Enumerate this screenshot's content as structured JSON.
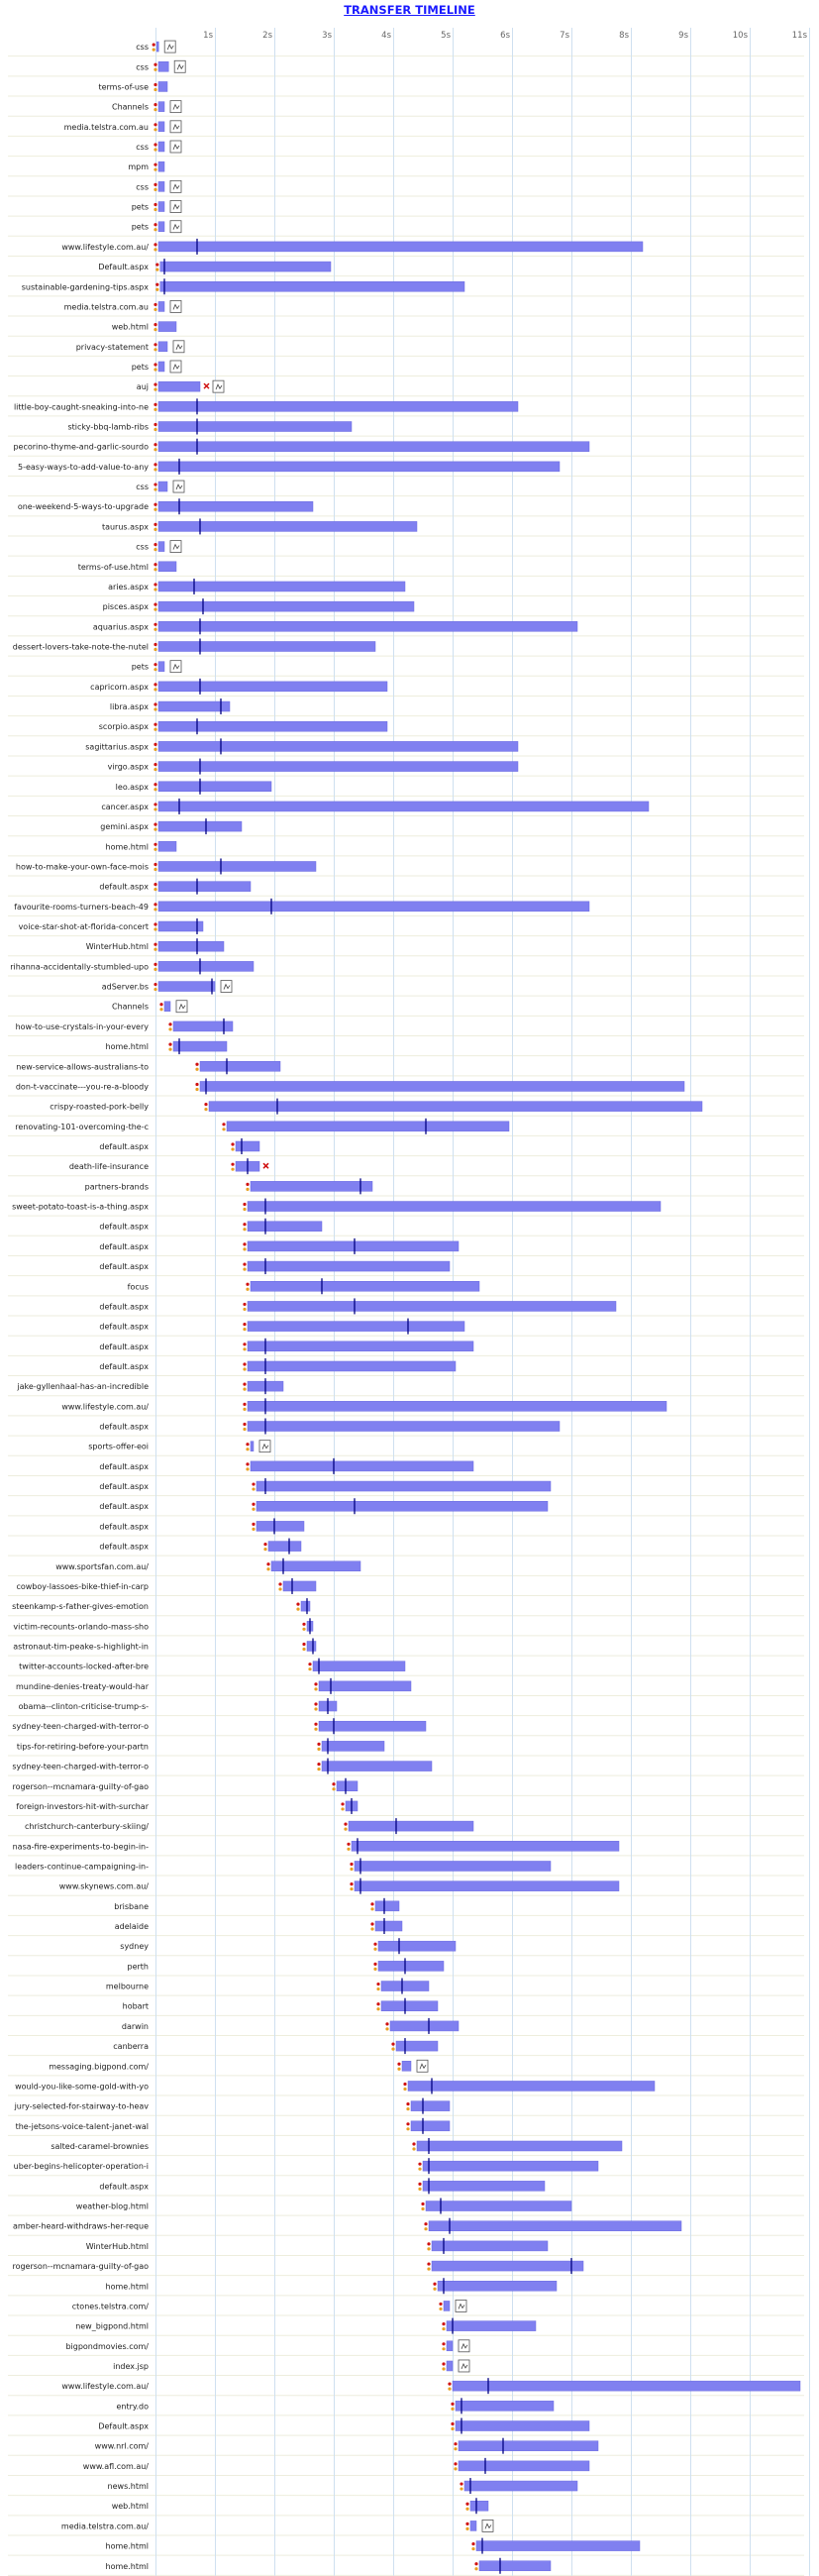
{
  "title": "TRANSFER TIMELINE",
  "chart_data": {
    "type": "gantt",
    "title": "TRANSFER TIMELINE",
    "x_unit": "seconds",
    "xlim": [
      0,
      11
    ],
    "x_ticks": [
      "1s",
      "2s",
      "3s",
      "4s",
      "5s",
      "6s",
      "7s",
      "8s",
      "9s",
      "10s",
      "11s"
    ],
    "grid": true,
    "colors": {
      "bar": "#8080f0",
      "grid": "#cfe0f0",
      "marker": "#000080",
      "error": "#d01010",
      "row_line": "#eeeedd",
      "link": "#1a1aff"
    },
    "rows": [
      {
        "label": "css",
        "start": 0.02,
        "end": 0.05,
        "mark": null,
        "type": "css"
      },
      {
        "label": "css",
        "start": 0.05,
        "end": 0.22,
        "mark": null,
        "type": "css"
      },
      {
        "label": "terms-of-use",
        "start": 0.05,
        "end": 0.2,
        "mark": null,
        "type": "none"
      },
      {
        "label": "Channels",
        "start": 0.05,
        "end": 0.15,
        "mark": null,
        "type": "css"
      },
      {
        "label": "media.telstra.com.au",
        "start": 0.05,
        "end": 0.15,
        "mark": null,
        "type": "css"
      },
      {
        "label": "css",
        "start": 0.05,
        "end": 0.15,
        "mark": null,
        "type": "css"
      },
      {
        "label": "mpm",
        "start": 0.05,
        "end": 0.15,
        "mark": null,
        "type": "none"
      },
      {
        "label": "css",
        "start": 0.05,
        "end": 0.15,
        "mark": null,
        "type": "css"
      },
      {
        "label": "pets",
        "start": 0.05,
        "end": 0.15,
        "mark": null,
        "type": "css"
      },
      {
        "label": "pets",
        "start": 0.05,
        "end": 0.15,
        "mark": null,
        "type": "css"
      },
      {
        "label": "www.lifestyle.com.au/",
        "start": 0.05,
        "end": 8.2,
        "mark": 0.7,
        "type": "none"
      },
      {
        "label": "Default.aspx",
        "start": 0.08,
        "end": 2.95,
        "mark": 0.15,
        "type": "none"
      },
      {
        "label": "sustainable-gardening-tips.aspx",
        "start": 0.08,
        "end": 5.2,
        "mark": 0.15,
        "type": "none"
      },
      {
        "label": "media.telstra.com.au",
        "start": 0.05,
        "end": 0.15,
        "mark": null,
        "type": "css"
      },
      {
        "label": "web.html",
        "start": 0.05,
        "end": 0.35,
        "mark": null,
        "type": "none"
      },
      {
        "label": "privacy-statement",
        "start": 0.05,
        "end": 0.2,
        "mark": null,
        "type": "css"
      },
      {
        "label": "pets",
        "start": 0.05,
        "end": 0.15,
        "mark": null,
        "type": "css"
      },
      {
        "label": "auj",
        "start": 0.05,
        "end": 0.75,
        "mark": null,
        "type": "err"
      },
      {
        "label": "little-boy-caught-sneaking-into-ne",
        "start": 0.05,
        "end": 6.1,
        "mark": 0.7,
        "type": "none"
      },
      {
        "label": "sticky-bbq-lamb-ribs",
        "start": 0.05,
        "end": 3.3,
        "mark": 0.7,
        "type": "none"
      },
      {
        "label": "pecorino-thyme-and-garlic-sourdo",
        "start": 0.05,
        "end": 7.3,
        "mark": 0.7,
        "type": "none"
      },
      {
        "label": "5-easy-ways-to-add-value-to-any",
        "start": 0.05,
        "end": 6.8,
        "mark": 0.4,
        "type": "none"
      },
      {
        "label": "css",
        "start": 0.05,
        "end": 0.2,
        "mark": null,
        "type": "css"
      },
      {
        "label": "one-weekend-5-ways-to-upgrade",
        "start": 0.05,
        "end": 2.65,
        "mark": 0.4,
        "type": "none"
      },
      {
        "label": "taurus.aspx",
        "start": 0.05,
        "end": 4.4,
        "mark": 0.75,
        "type": "none"
      },
      {
        "label": "css",
        "start": 0.05,
        "end": 0.15,
        "mark": null,
        "type": "css"
      },
      {
        "label": "terms-of-use.html",
        "start": 0.05,
        "end": 0.35,
        "mark": null,
        "type": "none"
      },
      {
        "label": "aries.aspx",
        "start": 0.05,
        "end": 4.2,
        "mark": 0.65,
        "type": "none"
      },
      {
        "label": "pisces.aspx",
        "start": 0.05,
        "end": 4.35,
        "mark": 0.8,
        "type": "none"
      },
      {
        "label": "aquarius.aspx",
        "start": 0.05,
        "end": 7.1,
        "mark": 0.75,
        "type": "none"
      },
      {
        "label": "dessert-lovers-take-note-the-nutel",
        "start": 0.05,
        "end": 3.7,
        "mark": 0.75,
        "type": "none"
      },
      {
        "label": "pets",
        "start": 0.05,
        "end": 0.15,
        "mark": null,
        "type": "css"
      },
      {
        "label": "capricorn.aspx",
        "start": 0.05,
        "end": 3.9,
        "mark": 0.75,
        "type": "none"
      },
      {
        "label": "libra.aspx",
        "start": 0.05,
        "end": 1.25,
        "mark": 1.1,
        "type": "none"
      },
      {
        "label": "scorpio.aspx",
        "start": 0.05,
        "end": 3.9,
        "mark": 0.7,
        "type": "none"
      },
      {
        "label": "sagittarius.aspx",
        "start": 0.05,
        "end": 6.1,
        "mark": 1.1,
        "type": "none"
      },
      {
        "label": "virgo.aspx",
        "start": 0.05,
        "end": 6.1,
        "mark": 0.75,
        "type": "none"
      },
      {
        "label": "leo.aspx",
        "start": 0.05,
        "end": 1.95,
        "mark": 0.75,
        "type": "none"
      },
      {
        "label": "cancer.aspx",
        "start": 0.05,
        "end": 8.3,
        "mark": 0.4,
        "type": "none"
      },
      {
        "label": "gemini.aspx",
        "start": 0.05,
        "end": 1.45,
        "mark": 0.85,
        "type": "none"
      },
      {
        "label": "home.html",
        "start": 0.05,
        "end": 0.35,
        "mark": null,
        "type": "none"
      },
      {
        "label": "how-to-make-your-own-face-mois",
        "start": 0.05,
        "end": 2.7,
        "mark": 1.1,
        "type": "none"
      },
      {
        "label": "default.aspx",
        "start": 0.05,
        "end": 1.6,
        "mark": 0.7,
        "type": "none"
      },
      {
        "label": "favourite-rooms-turners-beach-49",
        "start": 0.05,
        "end": 7.3,
        "mark": 1.95,
        "type": "none"
      },
      {
        "label": "voice-star-shot-at-florida-concert",
        "start": 0.05,
        "end": 0.8,
        "mark": 0.7,
        "type": "none"
      },
      {
        "label": "WinterHub.html",
        "start": 0.05,
        "end": 1.15,
        "mark": 0.7,
        "type": "none"
      },
      {
        "label": "rihanna-accidentally-stumbled-upo",
        "start": 0.05,
        "end": 1.65,
        "mark": 0.75,
        "type": "none"
      },
      {
        "label": "adServer.bs",
        "start": 0.05,
        "end": 1.0,
        "mark": 0.95,
        "type": "css"
      },
      {
        "label": "Channels",
        "start": 0.15,
        "end": 0.25,
        "mark": null,
        "type": "css"
      },
      {
        "label": "how-to-use-crystals-in-your-every",
        "start": 0.3,
        "end": 1.3,
        "mark": 1.15,
        "type": "none"
      },
      {
        "label": "home.html",
        "start": 0.3,
        "end": 1.2,
        "mark": 0.4,
        "type": "none"
      },
      {
        "label": "new-service-allows-australians-to",
        "start": 0.75,
        "end": 2.1,
        "mark": 1.2,
        "type": "none"
      },
      {
        "label": "don-t-vaccinate---you-re-a-bloody",
        "start": 0.75,
        "end": 8.9,
        "mark": 0.85,
        "type": "none"
      },
      {
        "label": "crispy-roasted-pork-belly",
        "start": 0.9,
        "end": 9.2,
        "mark": 2.05,
        "type": "none"
      },
      {
        "label": "renovating-101-overcoming-the-c",
        "start": 1.2,
        "end": 5.95,
        "mark": 4.55,
        "type": "none"
      },
      {
        "label": "default.aspx",
        "start": 1.35,
        "end": 1.75,
        "mark": 1.45,
        "type": "none"
      },
      {
        "label": "death-life-insurance",
        "start": 1.35,
        "end": 1.75,
        "mark": 1.55,
        "type": "err"
      },
      {
        "label": "partners-brands",
        "start": 1.6,
        "end": 3.65,
        "mark": 3.45,
        "type": "none"
      },
      {
        "label": "sweet-potato-toast-is-a-thing.aspx",
        "start": 1.55,
        "end": 8.5,
        "mark": 1.85,
        "type": "none"
      },
      {
        "label": "default.aspx",
        "start": 1.55,
        "end": 2.8,
        "mark": 1.85,
        "type": "none"
      },
      {
        "label": "default.aspx",
        "start": 1.55,
        "end": 5.1,
        "mark": 3.35,
        "type": "none"
      },
      {
        "label": "default.aspx",
        "start": 1.55,
        "end": 4.95,
        "mark": 1.85,
        "type": "none"
      },
      {
        "label": "focus",
        "start": 1.6,
        "end": 5.45,
        "mark": 2.8,
        "type": "none"
      },
      {
        "label": "default.aspx",
        "start": 1.55,
        "end": 7.75,
        "mark": 3.35,
        "type": "none"
      },
      {
        "label": "default.aspx",
        "start": 1.55,
        "end": 5.2,
        "mark": 4.25,
        "type": "none"
      },
      {
        "label": "default.aspx",
        "start": 1.55,
        "end": 5.35,
        "mark": 1.85,
        "type": "none"
      },
      {
        "label": "default.aspx",
        "start": 1.55,
        "end": 5.05,
        "mark": 1.85,
        "type": "none"
      },
      {
        "label": "jake-gyllenhaal-has-an-incredible",
        "start": 1.55,
        "end": 2.15,
        "mark": 1.85,
        "type": "none"
      },
      {
        "label": "www.lifestyle.com.au/",
        "start": 1.55,
        "end": 8.6,
        "mark": 1.85,
        "type": "none"
      },
      {
        "label": "default.aspx",
        "start": 1.55,
        "end": 6.8,
        "mark": 1.85,
        "type": "none"
      },
      {
        "label": "sports-offer-eoi",
        "start": 1.6,
        "end": 1.65,
        "mark": null,
        "type": "css"
      },
      {
        "label": "default.aspx",
        "start": 1.6,
        "end": 5.35,
        "mark": 3.0,
        "type": "none"
      },
      {
        "label": "default.aspx",
        "start": 1.7,
        "end": 6.65,
        "mark": 1.85,
        "type": "none"
      },
      {
        "label": "default.aspx",
        "start": 1.7,
        "end": 6.6,
        "mark": 3.35,
        "type": "none"
      },
      {
        "label": "default.aspx",
        "start": 1.7,
        "end": 2.5,
        "mark": 2.0,
        "type": "none"
      },
      {
        "label": "default.aspx",
        "start": 1.9,
        "end": 2.45,
        "mark": 2.25,
        "type": "none"
      },
      {
        "label": "www.sportsfan.com.au/",
        "start": 1.95,
        "end": 3.45,
        "mark": 2.15,
        "type": "none"
      },
      {
        "label": "cowboy-lassoes-bike-thief-in-carp",
        "start": 2.15,
        "end": 2.7,
        "mark": 2.3,
        "type": "none"
      },
      {
        "label": "steenkamp-s-father-gives-emotion",
        "start": 2.45,
        "end": 2.6,
        "mark": 2.55,
        "type": "none"
      },
      {
        "label": "victim-recounts-orlando-mass-sho",
        "start": 2.55,
        "end": 2.65,
        "mark": 2.6,
        "type": "none"
      },
      {
        "label": "astronaut-tim-peake-s-highlight-in",
        "start": 2.55,
        "end": 2.7,
        "mark": 2.65,
        "type": "none"
      },
      {
        "label": "twitter-accounts-locked-after-bre",
        "start": 2.65,
        "end": 4.2,
        "mark": 2.75,
        "type": "none"
      },
      {
        "label": "mundine-denies-treaty-would-har",
        "start": 2.75,
        "end": 4.3,
        "mark": 2.95,
        "type": "none"
      },
      {
        "label": "obama--clinton-criticise-trump-s-",
        "start": 2.75,
        "end": 3.05,
        "mark": 2.9,
        "type": "none"
      },
      {
        "label": "sydney-teen-charged-with-terror-o",
        "start": 2.75,
        "end": 4.55,
        "mark": 3.0,
        "type": "none"
      },
      {
        "label": "tips-for-retiring-before-your-partn",
        "start": 2.8,
        "end": 3.85,
        "mark": 2.9,
        "type": "none"
      },
      {
        "label": "sydney-teen-charged-with-terror-o",
        "start": 2.8,
        "end": 4.65,
        "mark": 2.9,
        "type": "none"
      },
      {
        "label": "rogerson--mcnamara-guilty-of-gao",
        "start": 3.05,
        "end": 3.4,
        "mark": 3.2,
        "type": "none"
      },
      {
        "label": "foreign-investors-hit-with-surchar",
        "start": 3.2,
        "end": 3.4,
        "mark": 3.3,
        "type": "none"
      },
      {
        "label": "christchurch-canterbury-skiing/",
        "start": 3.25,
        "end": 5.35,
        "mark": 4.05,
        "type": "none"
      },
      {
        "label": "nasa-fire-experiments-to-begin-in-",
        "start": 3.3,
        "end": 7.8,
        "mark": 3.4,
        "type": "none"
      },
      {
        "label": "leaders-continue-campaigning-in-",
        "start": 3.35,
        "end": 6.65,
        "mark": 3.45,
        "type": "none"
      },
      {
        "label": "www.skynews.com.au/",
        "start": 3.35,
        "end": 7.8,
        "mark": 3.45,
        "type": "none"
      },
      {
        "label": "brisbane",
        "start": 3.7,
        "end": 4.1,
        "mark": 3.85,
        "type": "none"
      },
      {
        "label": "adelaide",
        "start": 3.7,
        "end": 4.15,
        "mark": 3.85,
        "type": "none"
      },
      {
        "label": "sydney",
        "start": 3.75,
        "end": 5.05,
        "mark": 4.1,
        "type": "none"
      },
      {
        "label": "perth",
        "start": 3.75,
        "end": 4.85,
        "mark": 4.2,
        "type": "none"
      },
      {
        "label": "melbourne",
        "start": 3.8,
        "end": 4.6,
        "mark": 4.15,
        "type": "none"
      },
      {
        "label": "hobart",
        "start": 3.8,
        "end": 4.75,
        "mark": 4.2,
        "type": "none"
      },
      {
        "label": "darwin",
        "start": 3.95,
        "end": 5.1,
        "mark": 4.6,
        "type": "none"
      },
      {
        "label": "canberra",
        "start": 4.05,
        "end": 4.75,
        "mark": 4.2,
        "type": "none"
      },
      {
        "label": "messaging.bigpond.com/",
        "start": 4.15,
        "end": 4.3,
        "mark": null,
        "type": "css"
      },
      {
        "label": "would-you-like-some-gold-with-yo",
        "start": 4.25,
        "end": 8.4,
        "mark": 4.65,
        "type": "none"
      },
      {
        "label": "jury-selected-for-stairway-to-heav",
        "start": 4.3,
        "end": 4.95,
        "mark": 4.5,
        "type": "none"
      },
      {
        "label": "the-jetsons-voice-talent-janet-wal",
        "start": 4.3,
        "end": 4.95,
        "mark": 4.5,
        "type": "none"
      },
      {
        "label": "salted-caramel-brownies",
        "start": 4.4,
        "end": 7.85,
        "mark": 4.6,
        "type": "none"
      },
      {
        "label": "uber-begins-helicopter-operation-i",
        "start": 4.5,
        "end": 7.45,
        "mark": 4.6,
        "type": "none"
      },
      {
        "label": "default.aspx",
        "start": 4.5,
        "end": 6.55,
        "mark": 4.6,
        "type": "none"
      },
      {
        "label": "weather-blog.html",
        "start": 4.55,
        "end": 7.0,
        "mark": 4.8,
        "type": "none"
      },
      {
        "label": "amber-heard-withdraws-her-reque",
        "start": 4.6,
        "end": 8.85,
        "mark": 4.95,
        "type": "none"
      },
      {
        "label": "WinterHub.html",
        "start": 4.65,
        "end": 6.6,
        "mark": 4.85,
        "type": "none"
      },
      {
        "label": "rogerson--mcnamara-guilty-of-gao",
        "start": 4.65,
        "end": 7.2,
        "mark": 7.0,
        "type": "none"
      },
      {
        "label": "home.html",
        "start": 4.75,
        "end": 6.75,
        "mark": 4.85,
        "type": "none"
      },
      {
        "label": "ctones.telstra.com/",
        "start": 4.85,
        "end": 4.95,
        "mark": null,
        "type": "css"
      },
      {
        "label": "new_bigpond.html",
        "start": 4.9,
        "end": 6.4,
        "mark": 5.0,
        "type": "none"
      },
      {
        "label": "bigpondmovies.com/",
        "start": 4.9,
        "end": 5.0,
        "mark": null,
        "type": "css"
      },
      {
        "label": "index.jsp",
        "start": 4.9,
        "end": 5.0,
        "mark": null,
        "type": "css"
      },
      {
        "label": "www.lifestyle.com.au/",
        "start": 5.0,
        "end": 10.85,
        "mark": 5.6,
        "type": "none"
      },
      {
        "label": "entry.do",
        "start": 5.05,
        "end": 6.7,
        "mark": 5.15,
        "type": "none"
      },
      {
        "label": "Default.aspx",
        "start": 5.05,
        "end": 7.3,
        "mark": 5.15,
        "type": "none"
      },
      {
        "label": "www.nrl.com/",
        "start": 5.1,
        "end": 7.45,
        "mark": 5.85,
        "type": "none"
      },
      {
        "label": "www.afl.com.au/",
        "start": 5.1,
        "end": 7.3,
        "mark": 5.55,
        "type": "none"
      },
      {
        "label": "news.html",
        "start": 5.2,
        "end": 7.1,
        "mark": 5.3,
        "type": "none"
      },
      {
        "label": "web.html",
        "start": 5.3,
        "end": 5.6,
        "mark": 5.4,
        "type": "none"
      },
      {
        "label": "media.telstra.com.au/",
        "start": 5.3,
        "end": 5.4,
        "mark": null,
        "type": "css"
      },
      {
        "label": "home.html",
        "start": 5.4,
        "end": 8.15,
        "mark": 5.5,
        "type": "none"
      },
      {
        "label": "home.html",
        "start": 5.45,
        "end": 6.65,
        "mark": 5.8,
        "type": "none"
      }
    ]
  }
}
